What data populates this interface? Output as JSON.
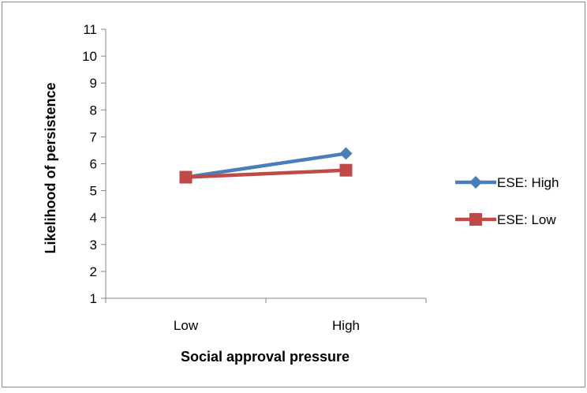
{
  "chart_data": {
    "type": "line",
    "categories": [
      "Low",
      "High"
    ],
    "series": [
      {
        "name": "ESE: High",
        "values": [
          5.5,
          6.38
        ],
        "color": "#4a7ebb",
        "marker": "diamond"
      },
      {
        "name": "ESE: Low",
        "values": [
          5.5,
          5.76
        ],
        "color": "#be4b48",
        "marker": "square"
      }
    ],
    "xlabel": "Social approval pressure",
    "ylabel": "Likelihood of persistence",
    "ylim": [
      1,
      11
    ],
    "yticks": [
      "1",
      "2",
      "3",
      "4",
      "5",
      "6",
      "7",
      "8",
      "9",
      "10",
      "11"
    ],
    "grid": false,
    "legend_position": "right"
  }
}
